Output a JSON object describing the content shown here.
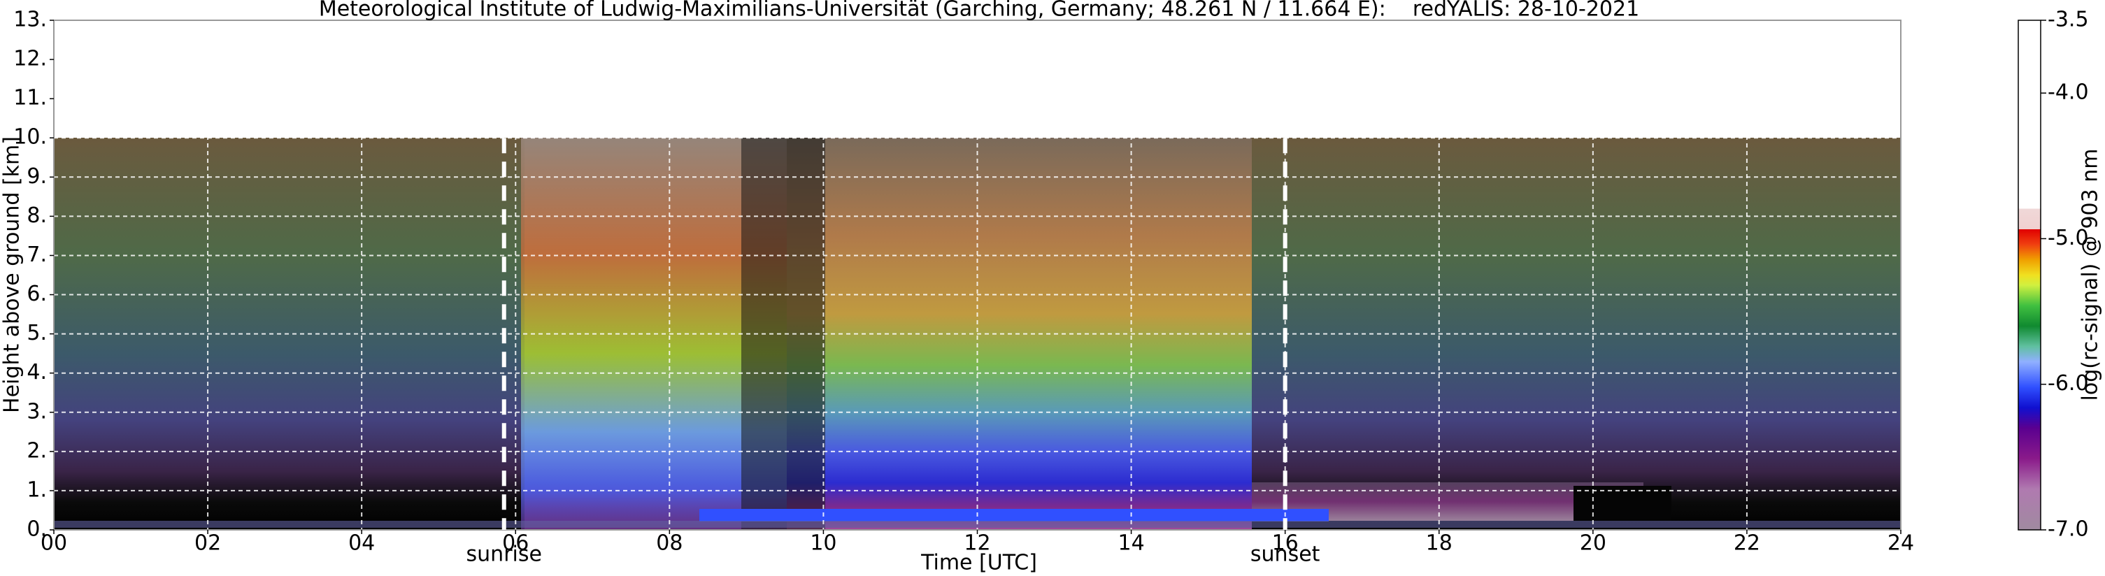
{
  "chart_data": {
    "type": "heatmap",
    "title": "Meteorological Institute of Ludwig-Maximilians-Universität (Garching, Germany; 48.261 N / 11.664 E):    redYALIS: 28-10-2021",
    "xlabel": "Time [UTC]",
    "ylabel": "Height above ground [km]",
    "xlim": [
      0,
      24
    ],
    "ylim": [
      0,
      13
    ],
    "xticks": [
      {
        "value": 0,
        "label": "00"
      },
      {
        "value": 2,
        "label": "02"
      },
      {
        "value": 4,
        "label": "04"
      },
      {
        "value": 6,
        "label": "06"
      },
      {
        "value": 8,
        "label": "08"
      },
      10,
      12,
      14,
      16,
      18,
      20,
      22,
      24
    ],
    "yticks": [
      {
        "value": 0,
        "label": "0."
      },
      {
        "value": 1,
        "label": "1."
      },
      {
        "value": 2,
        "label": "2."
      },
      {
        "value": 3,
        "label": "3."
      },
      {
        "value": 4,
        "label": "4."
      },
      {
        "value": 5,
        "label": "5."
      },
      {
        "value": 6,
        "label": "6."
      },
      {
        "value": 7,
        "label": "7."
      },
      {
        "value": 8,
        "label": "8."
      },
      {
        "value": 9,
        "label": "9."
      },
      {
        "value": 10,
        "label": "10."
      },
      {
        "value": 11,
        "label": "11."
      },
      {
        "value": 12,
        "label": "12."
      },
      {
        "value": 13,
        "label": "13."
      }
    ],
    "grid": true,
    "annotations": [
      {
        "text": "sunrise",
        "x": 5.85
      },
      {
        "text": "sunset",
        "x": 16
      }
    ],
    "colorbar": {
      "label": "log(rc-signal) @ 903 nm",
      "lim": [
        -7,
        -3.5
      ],
      "ticks": [
        {
          "value": -7,
          "label": "-7.0"
        },
        {
          "value": -6,
          "label": "-6.0"
        },
        {
          "value": -5,
          "label": "-5.0"
        },
        {
          "value": -4,
          "label": "-4.0"
        },
        -3.5
      ]
    }
  }
}
